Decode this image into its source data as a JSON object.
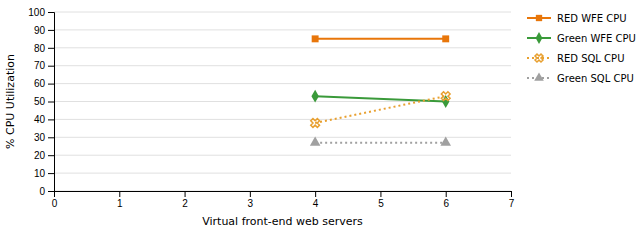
{
  "chart_data": {
    "type": "line",
    "xlabel": "Virtual front-end web servers",
    "ylabel": "% CPU Utilization",
    "x": [
      4,
      6
    ],
    "series": [
      {
        "name": "RED WFE CPU",
        "color": "#E8760A",
        "values": [
          85,
          85
        ],
        "marker": "square",
        "line_style": "solid"
      },
      {
        "name": "Green WFE CPU",
        "color": "#3A9A3A",
        "values": [
          53,
          50
        ],
        "marker": "diamond",
        "line_style": "solid"
      },
      {
        "name": "RED SQL CPU",
        "color": "#E8A030",
        "values": [
          38,
          53
        ],
        "marker": "x",
        "line_style": "dotted"
      },
      {
        "name": "Green SQL CPU",
        "color": "#A0A0A0",
        "values": [
          27,
          27
        ],
        "marker": "triangle",
        "line_style": "dotted"
      }
    ],
    "xlim": [
      0,
      7
    ],
    "ylim": [
      0,
      100
    ],
    "xticks": [
      0,
      1,
      2,
      3,
      4,
      5,
      6,
      7
    ],
    "yticks": [
      0,
      10,
      20,
      30,
      40,
      50,
      60,
      70,
      80,
      90,
      100
    ],
    "grid": "y",
    "legend": "right"
  }
}
